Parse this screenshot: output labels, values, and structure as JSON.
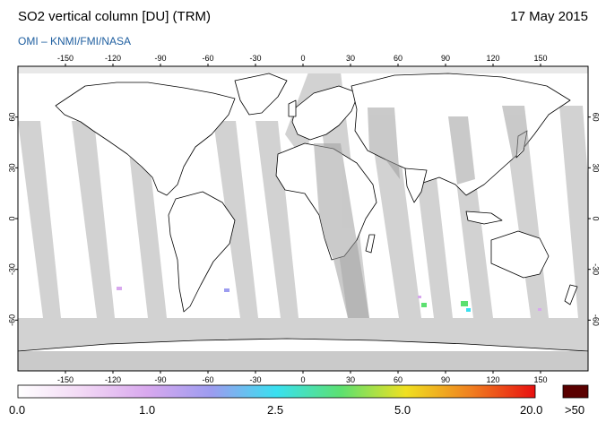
{
  "header": {
    "title": "SO2 vertical column [DU] (TRM)",
    "date": "17 May 2015",
    "credit": "OMI  –  KNMI/FMI/NASA"
  },
  "map": {
    "projection": "equirectangular",
    "lon_ticks": [
      -150,
      -120,
      -90,
      -60,
      -30,
      0,
      30,
      60,
      90,
      120,
      150
    ],
    "lat_ticks": [
      60,
      30,
      0,
      -30,
      -60
    ],
    "colors": {
      "ocean": "#ffffff",
      "land_outline": "#000000",
      "no_data": "#c8c8c8",
      "no_data_land": "#a0a0a0"
    }
  },
  "colorbar": {
    "labels": [
      "0.0",
      "1.0",
      "2.5",
      "5.0",
      "20.0",
      ">50"
    ],
    "stops": [
      "#ffffff",
      "#f2d8f5",
      "#d8a8ee",
      "#9c9cf0",
      "#39e0f0",
      "#5ce070",
      "#f0e020",
      "#f08020",
      "#e81010"
    ],
    "over_color": "#5a0000"
  }
}
